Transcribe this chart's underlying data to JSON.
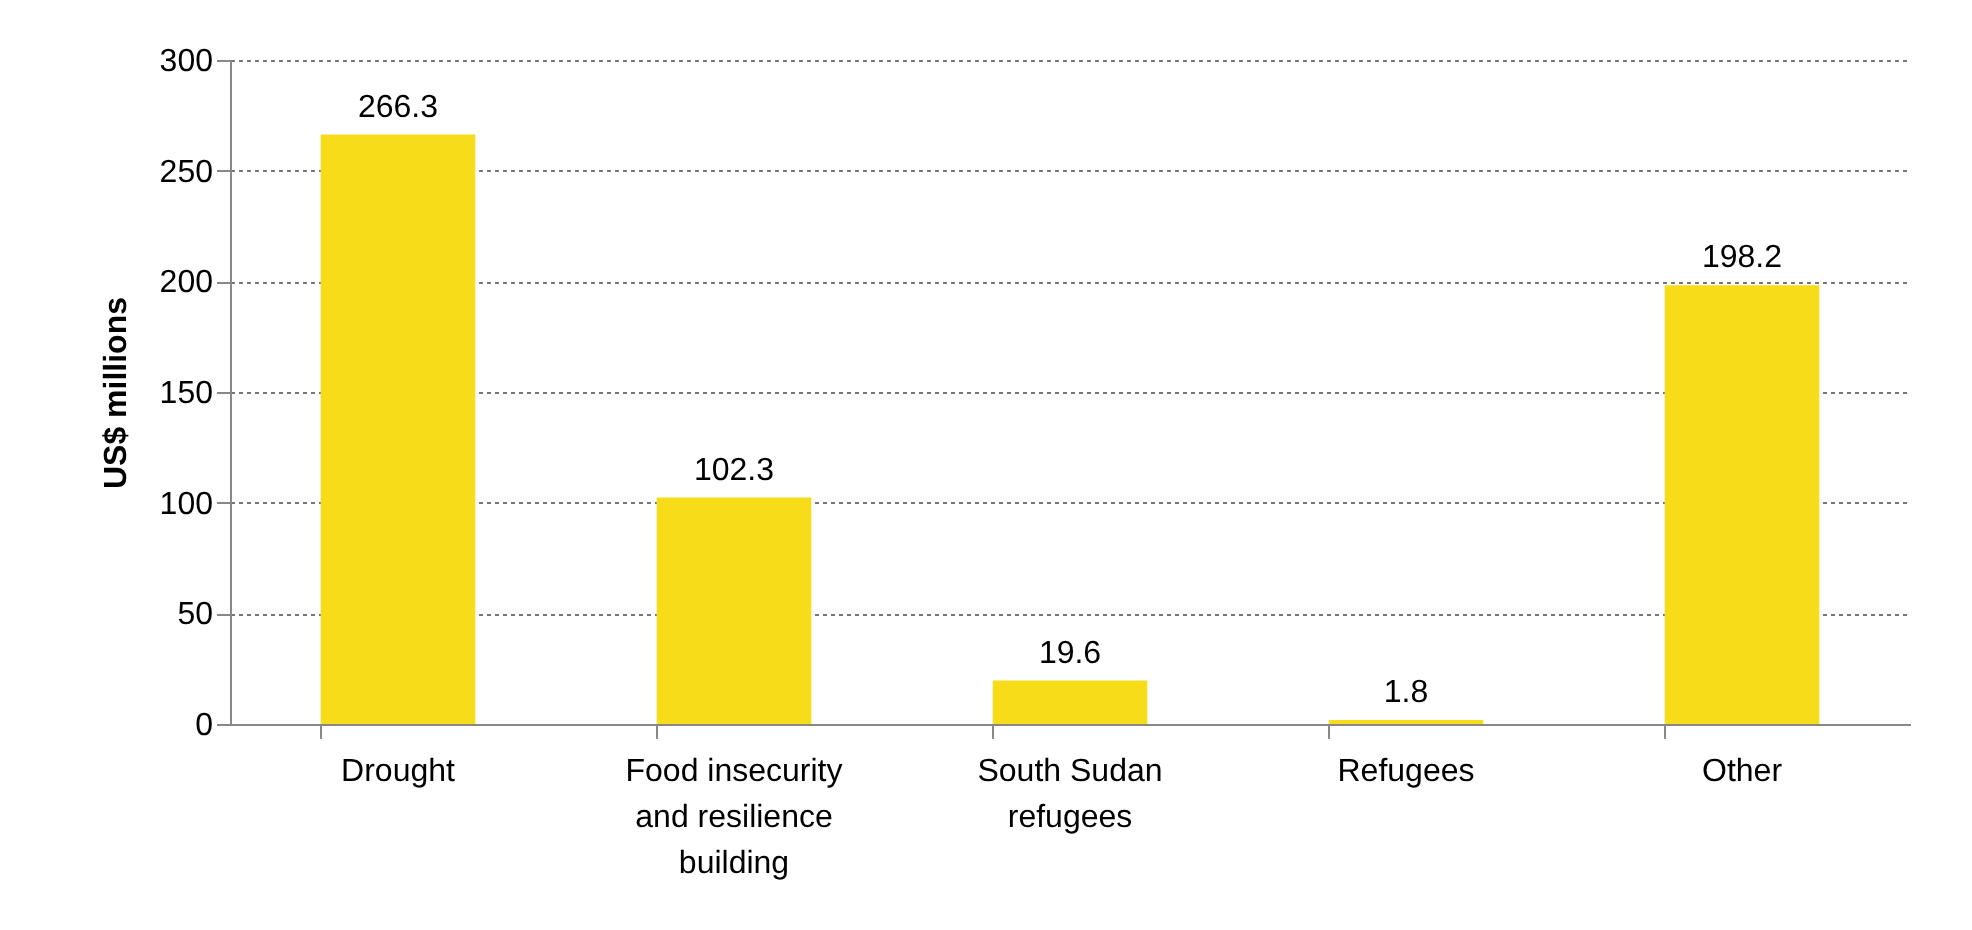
{
  "chart_data": {
    "type": "bar",
    "ylabel": "US$ millions",
    "categories": [
      "Drought",
      "Food insecurity and resilience building",
      "South Sudan refugees",
      "Refugees",
      "Other"
    ],
    "values": [
      266.3,
      102.3,
      19.6,
      1.8,
      198.2
    ],
    "color": "#f7dc1a",
    "ylim": [
      0,
      300
    ],
    "yticks": [
      0,
      50,
      100,
      150,
      200,
      250,
      300
    ],
    "grid": "y",
    "data_labels": true
  }
}
